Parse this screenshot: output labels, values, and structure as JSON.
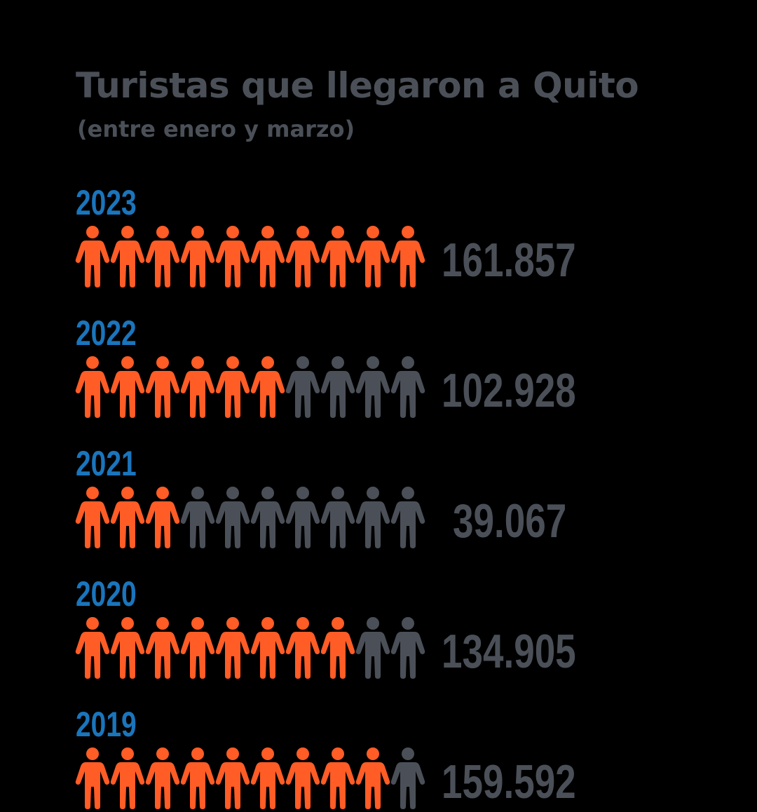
{
  "colors": {
    "background": "#000000",
    "title": "#4b5058",
    "year": "#1a75bc",
    "value": "#4b5058",
    "filled": "#ff5c26",
    "empty": "#4b5058"
  },
  "icon": "person-icon",
  "chart_data": {
    "type": "pictograph",
    "title": "Turistas que llegaron a Quito",
    "subtitle": "(entre enero y marzo)",
    "icons_per_row": 10,
    "rows": [
      {
        "year": "2023",
        "value": 161857,
        "value_label": "161.857",
        "filled_icons": 10
      },
      {
        "year": "2022",
        "value": 102928,
        "value_label": "102.928",
        "filled_icons": 6
      },
      {
        "year": "2021",
        "value": 39067,
        "value_label": "39.067",
        "filled_icons": 3
      },
      {
        "year": "2020",
        "value": 134905,
        "value_label": "134.905",
        "filled_icons": 8
      },
      {
        "year": "2019",
        "value": 159592,
        "value_label": "159.592",
        "filled_icons": 9
      }
    ]
  }
}
